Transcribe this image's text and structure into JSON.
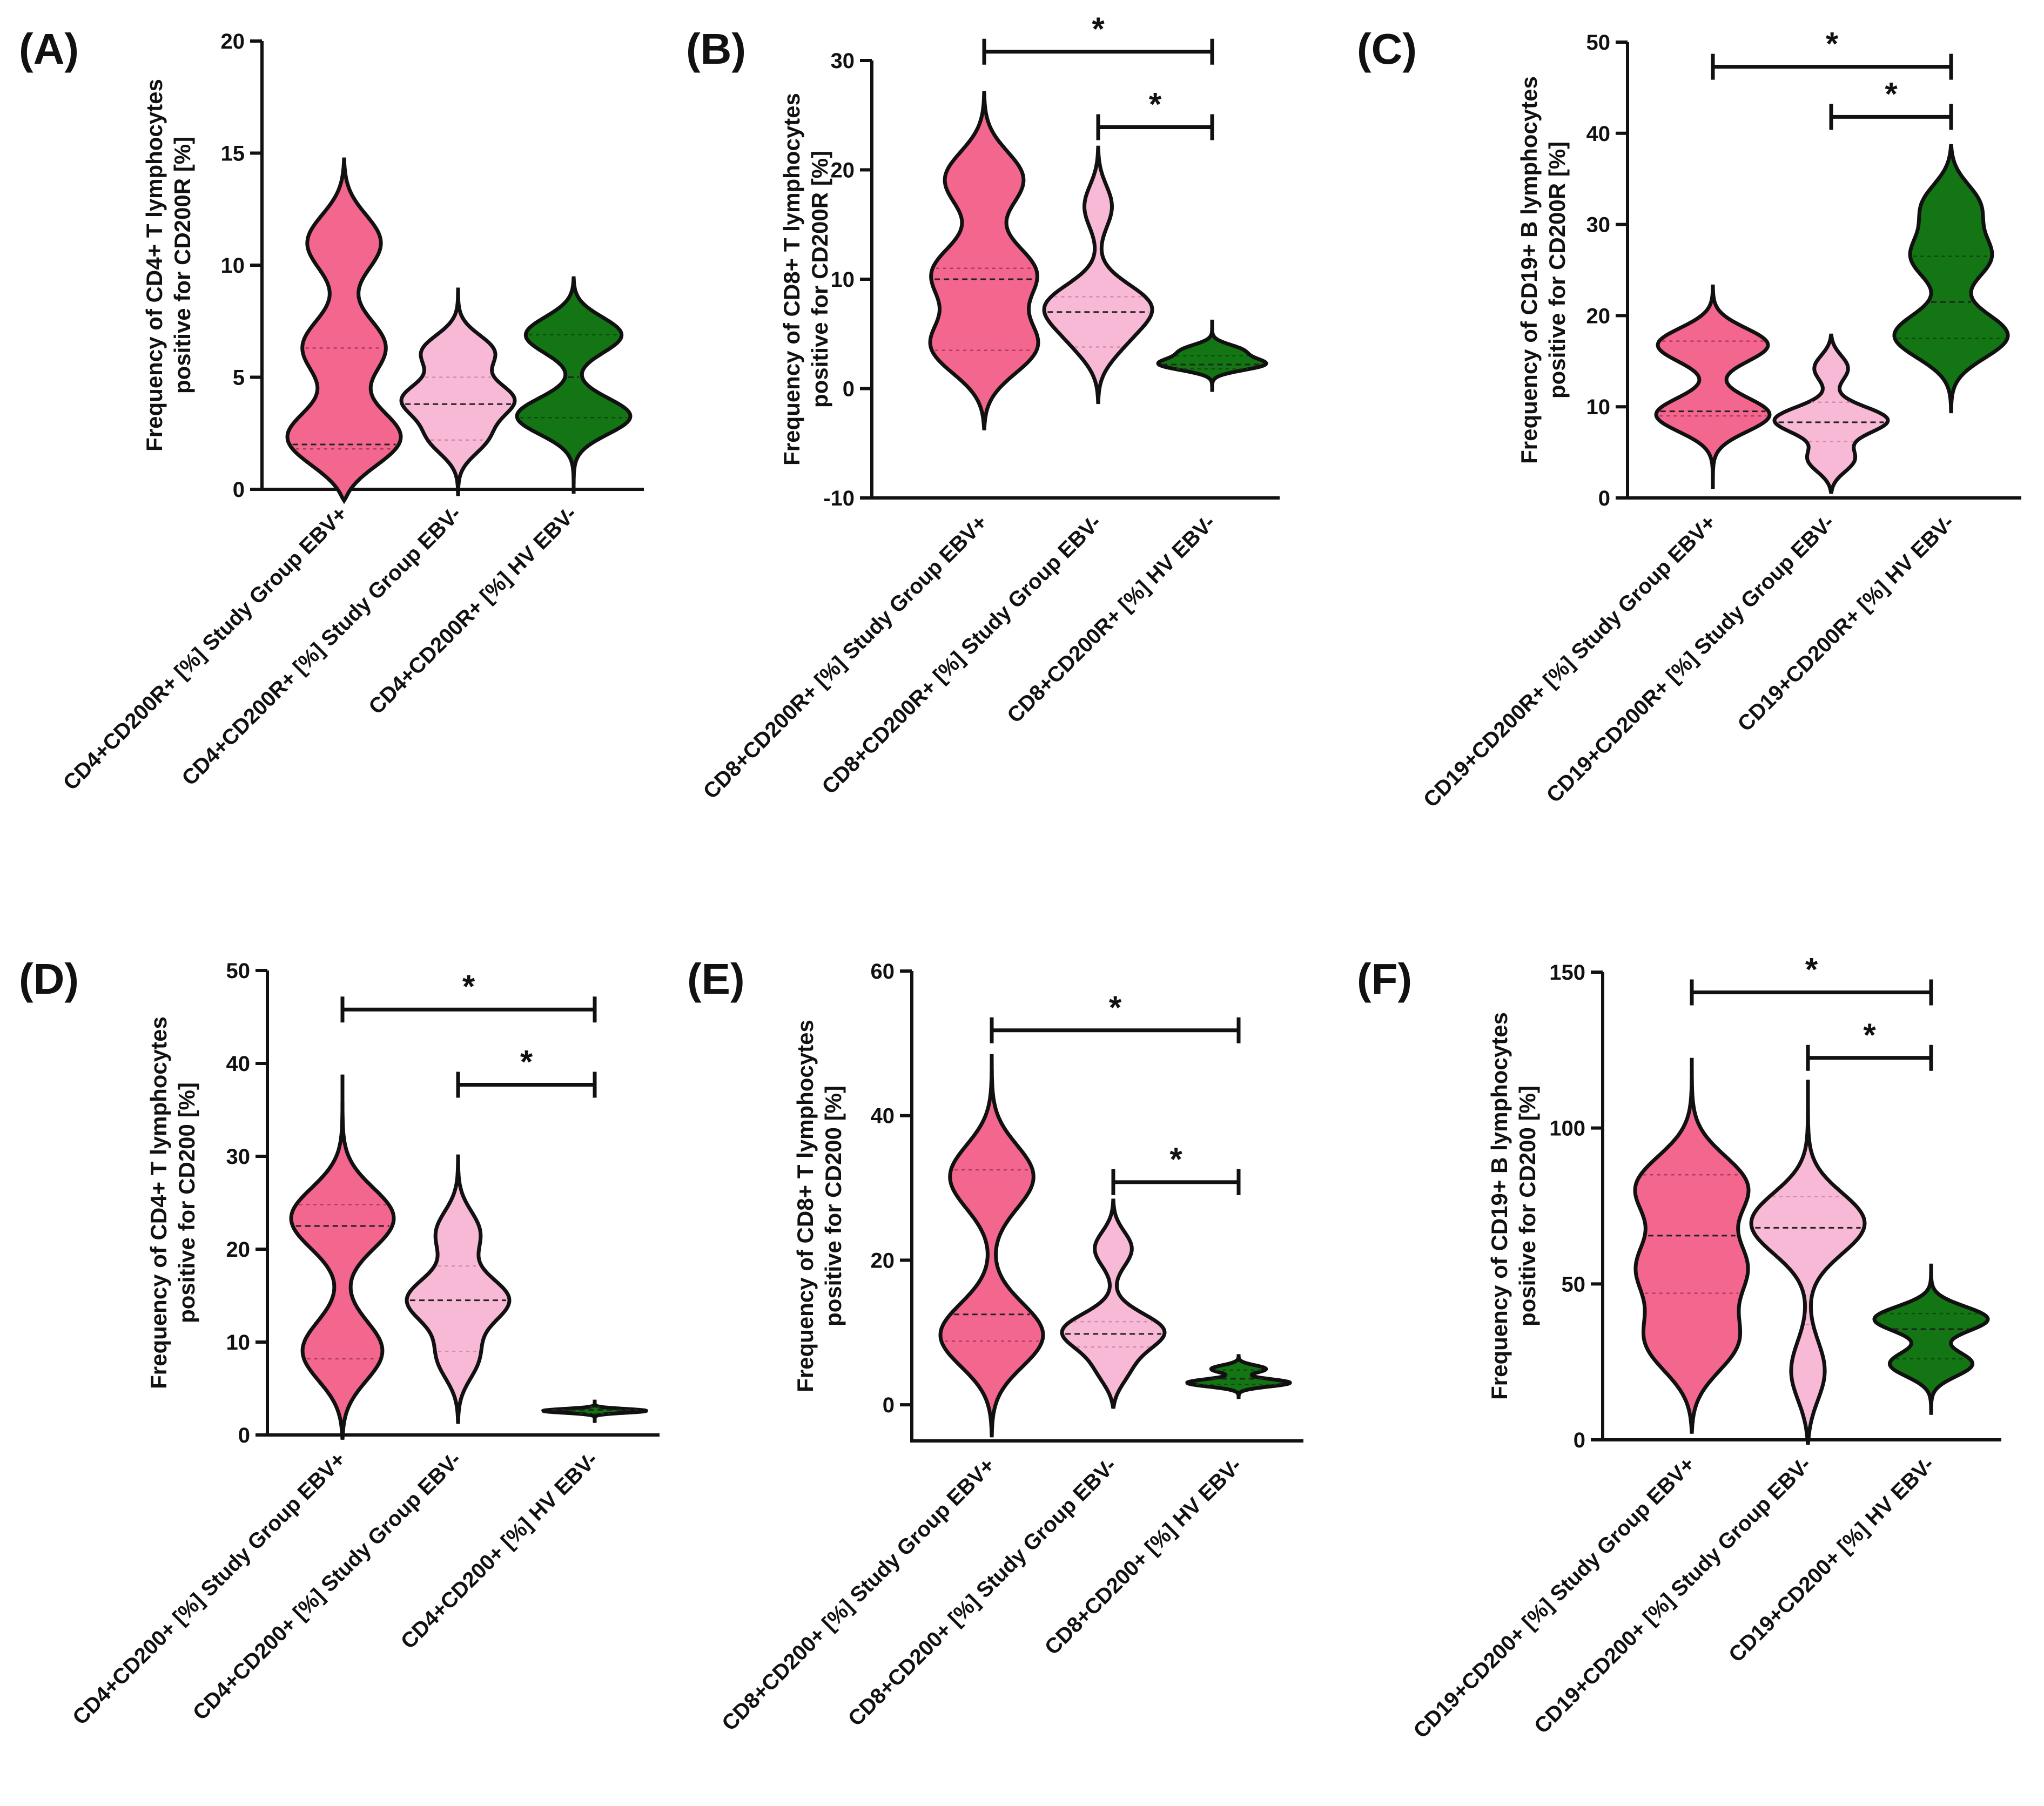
{
  "colors": {
    "ebv_pos": "#f3678f",
    "ebv_neg": "#f8b9d7",
    "hv": "#137513"
  },
  "chart_data": [
    {
      "type": "violin",
      "panel": "(A)",
      "ylabel": [
        "Frequency of CD4+ T lymphocytes",
        "positive for CD200R [%]"
      ],
      "ylim": [
        0,
        20
      ],
      "yticks": [
        0,
        5,
        10,
        15,
        20
      ],
      "categories": [
        "CD4+CD200R+ [%] Study Group EBV+",
        "CD4+CD200R+ [%] Study Group EBV-",
        "CD4+CD200R+ [%] HV EBV-"
      ],
      "series": [
        {
          "range": [
            -0.5,
            14.8
          ],
          "modes": [
            [
              2,
              1
            ],
            [
              6.3,
              0.5
            ],
            [
              11.2,
              0.55
            ]
          ],
          "q1": 1.8,
          "median": 2.0,
          "q3": 6.3
        },
        {
          "range": [
            -0.3,
            9.0
          ],
          "modes": [
            [
              2.2,
              0.6
            ],
            [
              4.0,
              1.0
            ],
            [
              6.2,
              0.75
            ]
          ],
          "q1": 2.2,
          "median": 3.8,
          "q3": 5.0
        },
        {
          "range": [
            -0.2,
            9.5
          ],
          "modes": [
            [
              3.2,
              1.0
            ],
            [
              7.0,
              0.95
            ]
          ],
          "q1": 3.2,
          "median": 5.0,
          "q3": 6.9
        }
      ],
      "significance": []
    },
    {
      "type": "violin",
      "panel": "(B)",
      "ylabel": [
        "Frequency of CD8+ T lymphocytes",
        "positive for CD200R [%]"
      ],
      "ylim": [
        -10,
        30
      ],
      "yticks": [
        -10,
        0,
        10,
        20,
        30
      ],
      "categories": [
        "CD8+CD200R+ [%] Study Group EBV+",
        "CD8+CD200R+ [%] Study Group EBV-",
        "CD8+CD200R+ [%] HV EBV-"
      ],
      "series": [
        {
          "range": [
            -3.8,
            27.2
          ],
          "modes": [
            [
              3.5,
              0.95
            ],
            [
              10.5,
              0.75
            ],
            [
              19.5,
              0.7
            ]
          ],
          "q1": 3.5,
          "median": 10.0,
          "q3": 11.0
        },
        {
          "range": [
            -1.4,
            22.2
          ],
          "modes": [
            [
              4.0,
              0.5
            ],
            [
              7.5,
              1.0
            ],
            [
              17.0,
              0.35
            ]
          ],
          "q1": 3.8,
          "median": 7.0,
          "q3": 8.4
        },
        {
          "range": [
            -0.3,
            6.3
          ],
          "modes": [
            [
              2.2,
              0.55
            ],
            [
              3.5,
              0.3
            ]
          ],
          "q1": 1.8,
          "median": 2.2,
          "q3": 3.0
        }
      ],
      "significance": [
        {
          "from": 0,
          "to": 2,
          "y": 30.8,
          "label": "*"
        },
        {
          "from": 1,
          "to": 2,
          "y": 23.9,
          "label": "*"
        }
      ]
    },
    {
      "type": "violin",
      "panel": "(C)",
      "ylabel": [
        "Frequency of CD19+ B lymphocytes",
        "positive for CD200R [%]"
      ],
      "ylim": [
        0,
        50
      ],
      "yticks": [
        0,
        10,
        20,
        30,
        40,
        50
      ],
      "categories": [
        "CD19+CD200R+ [%] Study Group EBV+",
        "CD19+CD200R+ [%] Study Group EBV-",
        "CD19+CD200R+ [%] HV EBV-"
      ],
      "series": [
        {
          "range": [
            1.0,
            23.4
          ],
          "modes": [
            [
              9.0,
              0.95
            ],
            [
              17.0,
              1.0
            ]
          ],
          "q1": 9.0,
          "median": 9.5,
          "q3": 17.2
        },
        {
          "range": [
            0.5,
            18.0
          ],
          "modes": [
            [
              4.0,
              0.55
            ],
            [
              8.5,
              1.0
            ],
            [
              14.5,
              0.4
            ]
          ],
          "q1": 6.2,
          "median": 8.3,
          "q3": 10.5
        },
        {
          "range": [
            9.3,
            38.8
          ],
          "modes": [
            [
              17.5,
              1.0
            ],
            [
              26.5,
              0.6
            ],
            [
              32.5,
              0.55
            ]
          ],
          "q1": 17.5,
          "median": 21.5,
          "q3": 26.5
        }
      ],
      "significance": [
        {
          "from": 0,
          "to": 2,
          "y": 47.3,
          "label": "*"
        },
        {
          "from": 1,
          "to": 2,
          "y": 41.8,
          "label": "*"
        }
      ]
    },
    {
      "type": "violin",
      "panel": "(D)",
      "ylabel": [
        "Frequency of CD4+ T lymphocytes",
        "positive for CD200 [%]"
      ],
      "ylim": [
        0,
        50
      ],
      "yticks": [
        0,
        10,
        20,
        30,
        40,
        50
      ],
      "categories": [
        "CD4+CD200+ [%] Study Group EBV+",
        "CD4+CD200+ [%] Study Group EBV-",
        "CD4+CD200+ [%] HV EBV-"
      ],
      "series": [
        {
          "range": [
            -0.5,
            38.8
          ],
          "modes": [
            [
              8.5,
              0.95
            ],
            [
              23.5,
              1.0
            ]
          ],
          "q1": 8.2,
          "median": 22.5,
          "q3": 24.8
        },
        {
          "range": [
            1.2,
            30.2
          ],
          "modes": [
            [
              8.0,
              0.5
            ],
            [
              14.5,
              1.0
            ],
            [
              22.0,
              0.5
            ]
          ],
          "q1": 9.0,
          "median": 14.5,
          "q3": 18.2
        },
        {
          "range": [
            1.3,
            3.8
          ],
          "modes": [
            [
              2.6,
              1.0
            ]
          ],
          "q1": 2.3,
          "median": 2.7,
          "q3": 3.0
        }
      ],
      "significance": [
        {
          "from": 0,
          "to": 2,
          "y": 45.8,
          "label": "*"
        },
        {
          "from": 1,
          "to": 2,
          "y": 37.7,
          "label": "*"
        }
      ]
    },
    {
      "type": "violin",
      "panel": "(E)",
      "ylabel": [
        "Frequency of CD8+ T lymphocytes",
        "positive for CD200 [%]"
      ],
      "ylim": [
        -5,
        60
      ],
      "yticks": [
        0,
        20,
        40,
        60
      ],
      "categories": [
        "CD8+CD200+ [%] Study Group EBV+",
        "CD8+CD200+ [%] Study Group EBV-",
        "CD8+CD200+ [%] HV EBV-"
      ],
      "series": [
        {
          "range": [
            -4.5,
            48.5
          ],
          "modes": [
            [
              9.0,
              1.0
            ],
            [
              32.0,
              0.75
            ]
          ],
          "q1": 8.8,
          "median": 12.5,
          "q3": 32.5
        },
        {
          "range": [
            -0.5,
            28.5
          ],
          "modes": [
            [
              4.5,
              0.4
            ],
            [
              10.0,
              1.0
            ],
            [
              22.0,
              0.45
            ]
          ],
          "q1": 8.0,
          "median": 9.8,
          "q3": 11.5
        },
        {
          "range": [
            0.8,
            7.0
          ],
          "modes": [
            [
              3.0,
              1.0
            ],
            [
              5.0,
              0.55
            ]
          ],
          "q1": 2.8,
          "median": 3.6,
          "q3": 4.8
        }
      ],
      "significance": [
        {
          "from": 0,
          "to": 2,
          "y": 51.8,
          "label": "*"
        },
        {
          "from": 1,
          "to": 2,
          "y": 30.8,
          "label": "*"
        }
      ]
    },
    {
      "type": "violin",
      "panel": "(F)",
      "ylabel": [
        "Frequency of CD19+ B lymphocytes",
        "positive for CD200 [%]"
      ],
      "ylim": [
        0,
        150
      ],
      "yticks": [
        0,
        50,
        100,
        150
      ],
      "categories": [
        "CD19+CD200+ [%] Study Group EBV+",
        "CD19+CD200+ [%] Study Group EBV-",
        "CD19+CD200+ [%] HV EBV-"
      ],
      "series": [
        {
          "range": [
            2.0,
            122.5
          ],
          "modes": [
            [
              30.0,
              0.8
            ],
            [
              55.0,
              0.75
            ],
            [
              82.0,
              0.85
            ]
          ],
          "q1": 47.0,
          "median": 65.5,
          "q3": 85.0
        },
        {
          "range": [
            -1.5,
            115.5
          ],
          "modes": [
            [
              20.0,
              0.4
            ],
            [
              70.0,
              1.0
            ]
          ],
          "q1": 37.0,
          "median": 68.0,
          "q3": 78.0
        },
        {
          "range": [
            8.0,
            56.5
          ],
          "modes": [
            [
              24.0,
              0.75
            ],
            [
              39.0,
              1.0
            ]
          ],
          "q1": 26.0,
          "median": 35.5,
          "q3": 40.5
        }
      ],
      "significance": [
        {
          "from": 0,
          "to": 2,
          "y": 143.5,
          "label": "*"
        },
        {
          "from": 1,
          "to": 2,
          "y": 122.5,
          "label": "*"
        }
      ]
    }
  ]
}
